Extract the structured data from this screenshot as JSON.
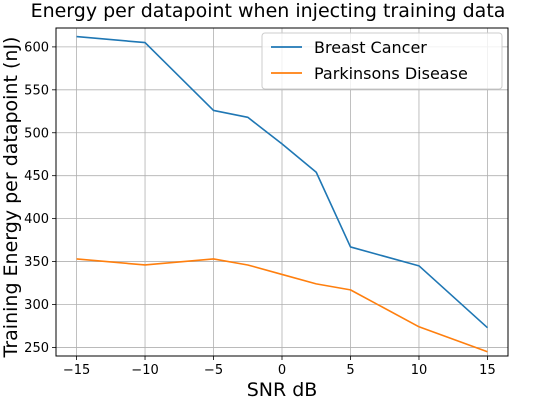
{
  "chart_data": {
    "type": "line",
    "title": "Energy per datapoint when injecting training data",
    "xlabel": "SNR dB",
    "ylabel": "Training Energy per datapoint (nJ)",
    "x": [
      -15,
      -10,
      -5,
      -2.5,
      0,
      2.5,
      5,
      10,
      15
    ],
    "xticks": [
      -15,
      -10,
      -5,
      0,
      5,
      10,
      15
    ],
    "xtick_labels": [
      "−15",
      "−10",
      "−5",
      "0",
      "5",
      "10",
      "15"
    ],
    "yticks": [
      250,
      300,
      350,
      400,
      450,
      500,
      550,
      600
    ],
    "ytick_labels": [
      "250",
      "300",
      "350",
      "400",
      "450",
      "500",
      "550",
      "600"
    ],
    "xlim": [
      -16.5,
      16.5
    ],
    "ylim": [
      240,
      622
    ],
    "grid": true,
    "legend_position": "upper-right",
    "series": [
      {
        "name": "Breast Cancer",
        "color": "#1f77b4",
        "values": [
          612,
          605,
          526,
          518,
          487,
          454,
          367,
          345,
          273
        ]
      },
      {
        "name": "Parkinsons Disease",
        "color": "#ff7f0e",
        "values": [
          353,
          346,
          353,
          346,
          335,
          324,
          317,
          274,
          245
        ]
      }
    ]
  }
}
